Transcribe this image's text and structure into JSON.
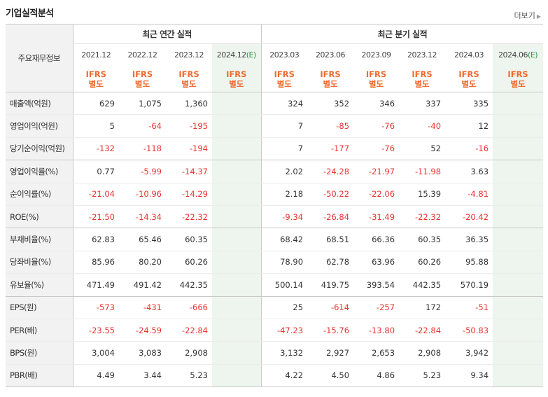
{
  "header": {
    "title": "기업실적분석",
    "more_label": "더보기"
  },
  "table": {
    "row_header": "주요재무정보",
    "annual_group": "최근 연간 실적",
    "quarter_group": "최근 분기 실적",
    "annual_periods": [
      "2021.12",
      "2022.12",
      "2023.12",
      "2024.12"
    ],
    "quarter_periods": [
      "2023.03",
      "2023.06",
      "2023.09",
      "2023.12",
      "2024.03",
      "2024.06"
    ],
    "estimate_mark": "(E)",
    "ifrs_top": "IFRS",
    "ifrs_bottom": "별도",
    "rows": [
      {
        "label": "매출액(억원)",
        "annual": [
          "629",
          "1,075",
          "1,360",
          ""
        ],
        "quarter": [
          "324",
          "352",
          "346",
          "337",
          "335",
          ""
        ]
      },
      {
        "label": "영업이익(억원)",
        "annual": [
          "5",
          "-64",
          "-195",
          ""
        ],
        "quarter": [
          "7",
          "-85",
          "-76",
          "-40",
          "12",
          ""
        ]
      },
      {
        "label": "당기순이익(억원)",
        "annual": [
          "-132",
          "-118",
          "-194",
          ""
        ],
        "quarter": [
          "7",
          "-177",
          "-76",
          "52",
          "-16",
          ""
        ]
      },
      {
        "label": "영업이익률(%)",
        "annual": [
          "0.77",
          "-5.99",
          "-14.37",
          ""
        ],
        "quarter": [
          "2.02",
          "-24.28",
          "-21.97",
          "-11.98",
          "3.63",
          ""
        ]
      },
      {
        "label": "순이익률(%)",
        "annual": [
          "-21.04",
          "-10.96",
          "-14.29",
          ""
        ],
        "quarter": [
          "2.18",
          "-50.22",
          "-22.06",
          "15.39",
          "-4.81",
          ""
        ]
      },
      {
        "label": "ROE(%)",
        "annual": [
          "-21.50",
          "-14.34",
          "-22.32",
          ""
        ],
        "quarter": [
          "-9.34",
          "-26.84",
          "-31.49",
          "-22.32",
          "-20.42",
          ""
        ]
      },
      {
        "label": "부채비율(%)",
        "annual": [
          "62.83",
          "65.46",
          "60.35",
          ""
        ],
        "quarter": [
          "68.42",
          "68.51",
          "66.36",
          "60.35",
          "36.35",
          ""
        ]
      },
      {
        "label": "당좌비율(%)",
        "annual": [
          "85.96",
          "80.20",
          "60.26",
          ""
        ],
        "quarter": [
          "78.90",
          "62.78",
          "63.96",
          "60.26",
          "95.88",
          ""
        ]
      },
      {
        "label": "유보율(%)",
        "annual": [
          "471.49",
          "491.42",
          "442.35",
          ""
        ],
        "quarter": [
          "500.14",
          "419.75",
          "393.54",
          "442.35",
          "570.19",
          ""
        ]
      },
      {
        "label": "EPS(원)",
        "annual": [
          "-573",
          "-431",
          "-666",
          ""
        ],
        "quarter": [
          "25",
          "-614",
          "-257",
          "172",
          "-51",
          ""
        ]
      },
      {
        "label": "PER(배)",
        "annual": [
          "-23.55",
          "-24.59",
          "-22.84",
          ""
        ],
        "quarter": [
          "-47.23",
          "-15.76",
          "-13.80",
          "-22.84",
          "-50.83",
          ""
        ]
      },
      {
        "label": "BPS(원)",
        "annual": [
          "3,004",
          "3,083",
          "2,908",
          ""
        ],
        "quarter": [
          "3,132",
          "2,927",
          "2,653",
          "2,908",
          "3,942",
          ""
        ]
      },
      {
        "label": "PBR(배)",
        "annual": [
          "4.49",
          "3.44",
          "5.23",
          ""
        ],
        "quarter": [
          "4.22",
          "4.50",
          "4.86",
          "5.23",
          "9.34",
          ""
        ]
      }
    ]
  },
  "colors": {
    "negative": "#e8332f",
    "ifrs": "#f06a2e",
    "estimate_bg": "#edf5ee",
    "estimate_mark": "#2e9a41",
    "label_bg": "#f2f2f2"
  }
}
